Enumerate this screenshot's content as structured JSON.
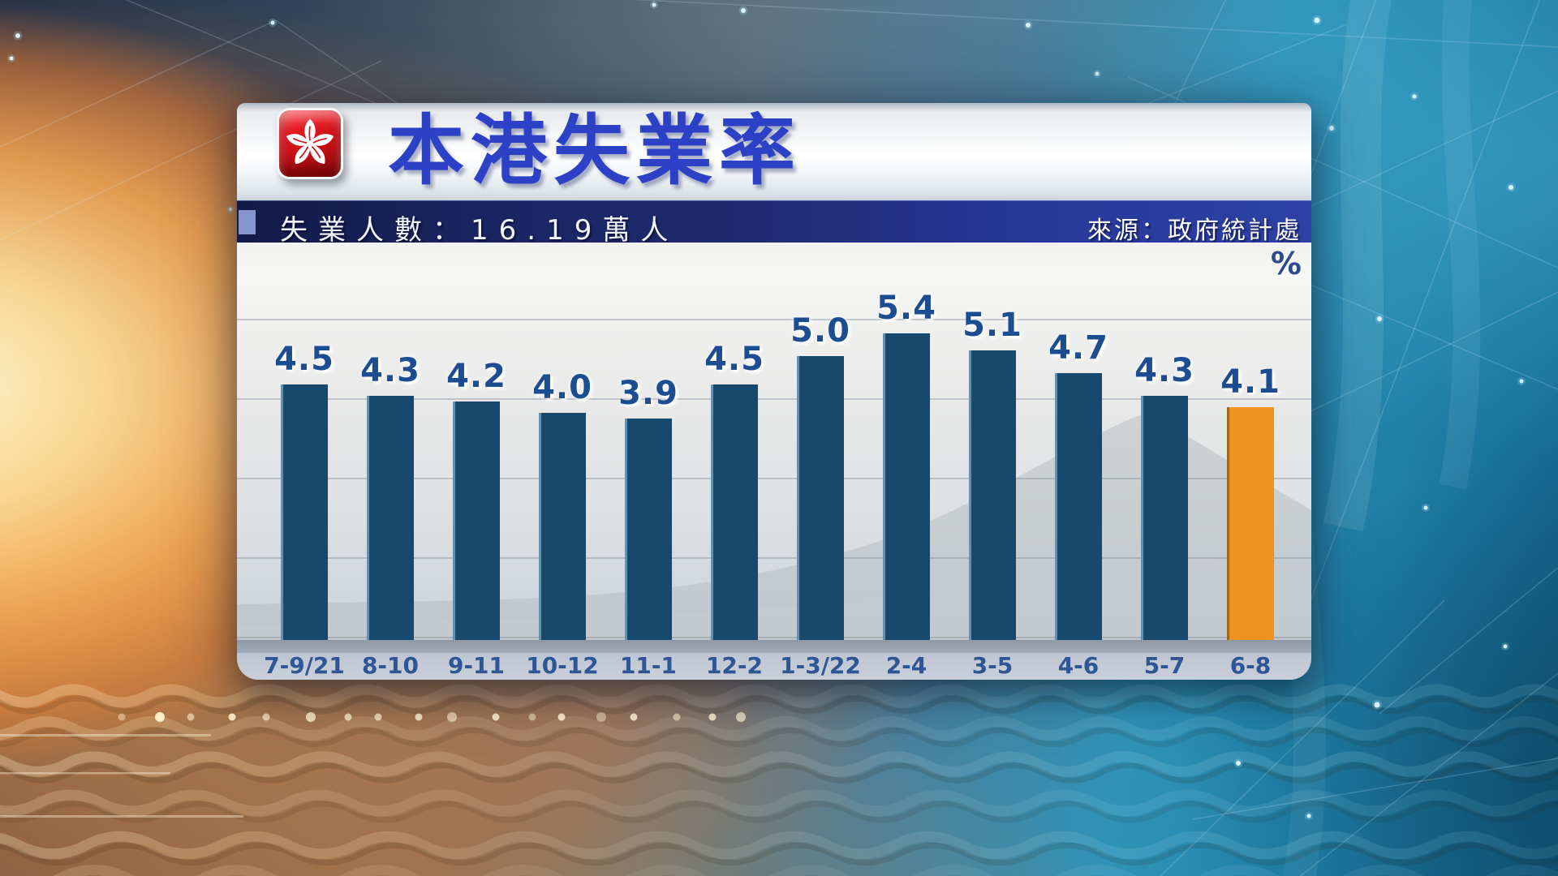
{
  "header": {
    "title": "本港失業率",
    "flag_icon": "hk-bauhinia-flag-icon"
  },
  "subtitle": {
    "label": "失業人數：16.19萬人",
    "source": "來源：政府統計處"
  },
  "chart_data": {
    "type": "bar",
    "title": "本港失業率",
    "subtitle": "失業人數：16.19萬人",
    "source": "來源：政府統計處",
    "unit_label": "%",
    "categories": [
      "7-9/21",
      "8-10",
      "9-11",
      "10-12",
      "11-1",
      "12-2",
      "1-3/22",
      "2-4",
      "3-5",
      "4-6",
      "5-7",
      "6-8"
    ],
    "values": [
      4.5,
      4.3,
      4.2,
      4.0,
      3.9,
      4.5,
      5.0,
      5.4,
      5.1,
      4.7,
      4.3,
      4.1
    ],
    "highlight_index": 11,
    "value_decimals": 1,
    "ylim": [
      0,
      7
    ],
    "grid": true,
    "legend": "none",
    "bar_color": "#17486e",
    "highlight_color": "#f1921e",
    "value_label_color": "#1c4c92",
    "axis_label_color": "#2e5694"
  },
  "colors": {
    "title_blue": "#2c41c6",
    "subtitle_bar_navy": "#1e2a6e",
    "flag_red": "#d8161d",
    "background_left_glow": "#f6a44c",
    "background_right_teal": "#1f84ac",
    "background_top_navy": "#20304a"
  }
}
